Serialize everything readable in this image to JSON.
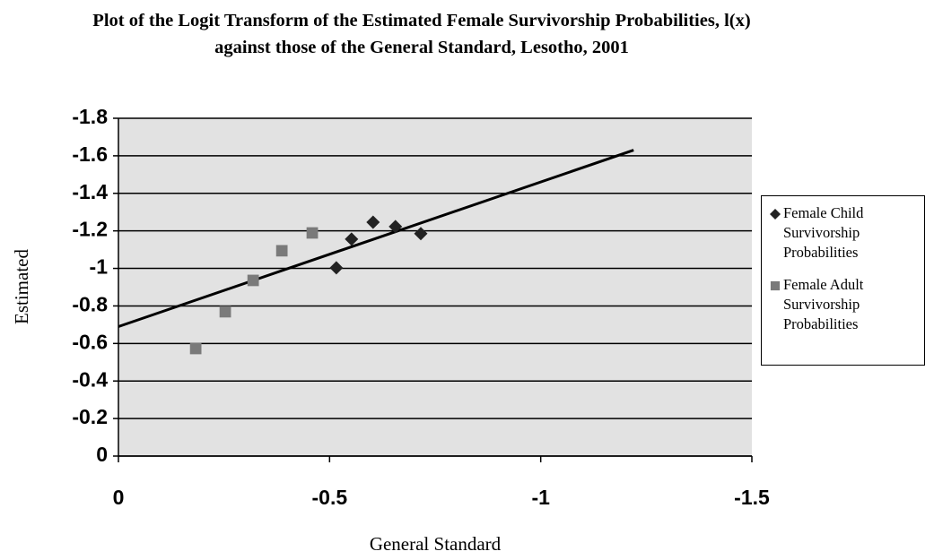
{
  "chart_data": {
    "type": "scatter",
    "title": "Plot of the Logit Transform of the Estimated Female Survivorship Probabilities, l(x) against those of the General Standard, Lesotho, 2001",
    "x_label": "General Standard",
    "y_label": "Estimated",
    "xlim": [
      0,
      -1.5
    ],
    "xticks": [
      0,
      -0.5,
      -1,
      -1.5
    ],
    "ylim": [
      0,
      -1.8
    ],
    "yticks": [
      0,
      -0.2,
      -0.4,
      -0.6,
      -0.8,
      -1,
      -1.2,
      -1.4,
      -1.6,
      -1.8
    ],
    "grid": true,
    "legend": "right",
    "series": [
      {
        "name": "Female Child Survivorship Probabilities",
        "color": "#222222",
        "marker": "diamond",
        "x": [
          -0.603,
          -0.656,
          -0.716,
          -0.516,
          -0.552
        ],
        "values": [
          -1.246,
          -1.223,
          -1.185,
          -1.003,
          -1.156
        ]
      },
      {
        "name": "Female Adult Survivorship Probabilities",
        "color": "#7a7a7a",
        "marker": "square",
        "x": [
          -0.183,
          -0.253,
          -0.319,
          -0.387,
          -0.459
        ],
        "values": [
          -0.573,
          -0.769,
          -0.936,
          -1.094,
          -1.189
        ]
      }
    ],
    "trendline": {
      "color": "#000000",
      "x": [
        0,
        -1.22
      ],
      "values": [
        -0.69,
        -1.63
      ]
    }
  }
}
